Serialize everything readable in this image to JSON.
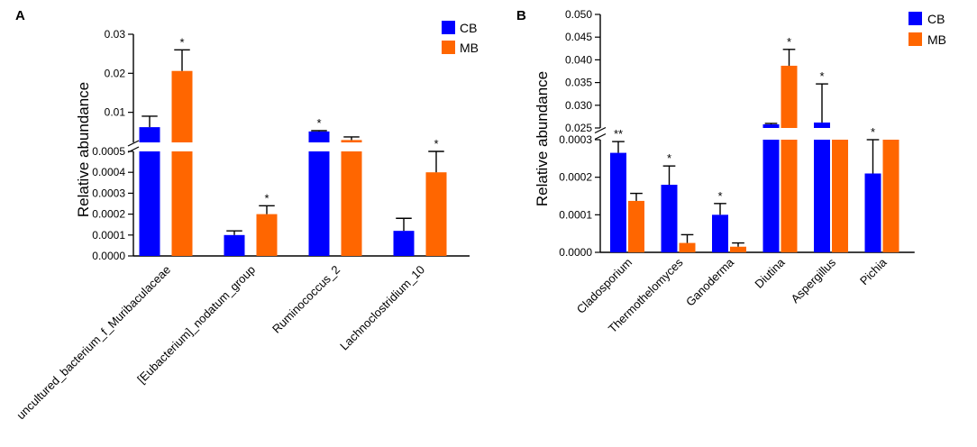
{
  "chart_data": [
    {
      "panel_label": "A",
      "type": "bar",
      "ylabel": "Relative abundance",
      "categories": [
        "uncultured_bacterium_f_Muribaculaceae",
        "[Eubacterium]_nodatum_group",
        "Ruminococcus_2",
        "Lachnoclostridium_10"
      ],
      "series": [
        {
          "name": "CB",
          "color": "#0000ff",
          "values": [
            0.0062,
            0.0001,
            0.0051,
            0.00012
          ],
          "errors": [
            0.0028,
            2e-05,
            0.0002,
            6e-05
          ]
        },
        {
          "name": "MB",
          "color": "#ff6600",
          "values": [
            0.0206,
            0.0002,
            0.0029,
            0.0004
          ],
          "errors": [
            0.0054,
            4e-05,
            0.0008,
            0.0001
          ]
        }
      ],
      "significance": [
        [
          "",
          "*"
        ],
        [
          "",
          "*"
        ],
        [
          "*",
          ""
        ],
        [
          "",
          "*"
        ]
      ],
      "y_break": {
        "lower": {
          "range": [
            0,
            0.0005
          ],
          "ticks": [
            "0.0000",
            "0.0001",
            "0.0002",
            "0.0003",
            "0.0004",
            "0.0005"
          ]
        },
        "upper": {
          "range": [
            0.0005,
            0.03
          ],
          "ticks": [
            "0.01",
            "0.02",
            "0.03"
          ]
        }
      },
      "legend": {
        "position": "top-right",
        "entries": [
          "CB",
          "MB"
        ]
      }
    },
    {
      "panel_label": "B",
      "type": "bar",
      "ylabel": "Relative abundance",
      "categories": [
        "Cladosporium",
        "Thermothelomyces",
        "Ganoderma",
        "Diutina",
        "Aspergillus",
        "Pichia"
      ],
      "series": [
        {
          "name": "CB",
          "color": "#0000ff",
          "values": [
            0.000265,
            0.00018,
            0.0001,
            0.0258,
            0.0262,
            0.00021
          ],
          "errors": [
            3e-05,
            5e-05,
            3e-05,
            0.0002,
            0.0085,
            0.0001
          ]
        },
        {
          "name": "MB",
          "color": "#ff6600",
          "values": [
            0.000137,
            2.5e-05,
            1.5e-05,
            0.0387,
            0.0247,
            0.0246
          ],
          "errors": [
            2e-05,
            2.2e-05,
            1e-05,
            0.0036,
            0.0,
            0.0
          ]
        }
      ],
      "significance": [
        [
          "**",
          ""
        ],
        [
          "*",
          ""
        ],
        [
          "*",
          ""
        ],
        [
          "",
          "*"
        ],
        [
          "*",
          ""
        ],
        [
          "*",
          ""
        ]
      ],
      "y_break": {
        "lower": {
          "range": [
            0,
            0.0003
          ],
          "ticks": [
            "0.0000",
            "0.0001",
            "0.0002",
            "0.0003"
          ]
        },
        "upper": {
          "range": [
            0.025,
            0.05
          ],
          "ticks": [
            "0.025",
            "0.030",
            "0.035",
            "0.040",
            "0.045",
            "0.050"
          ]
        }
      },
      "legend": {
        "position": "top-right",
        "entries": [
          "CB",
          "MB"
        ]
      }
    }
  ]
}
